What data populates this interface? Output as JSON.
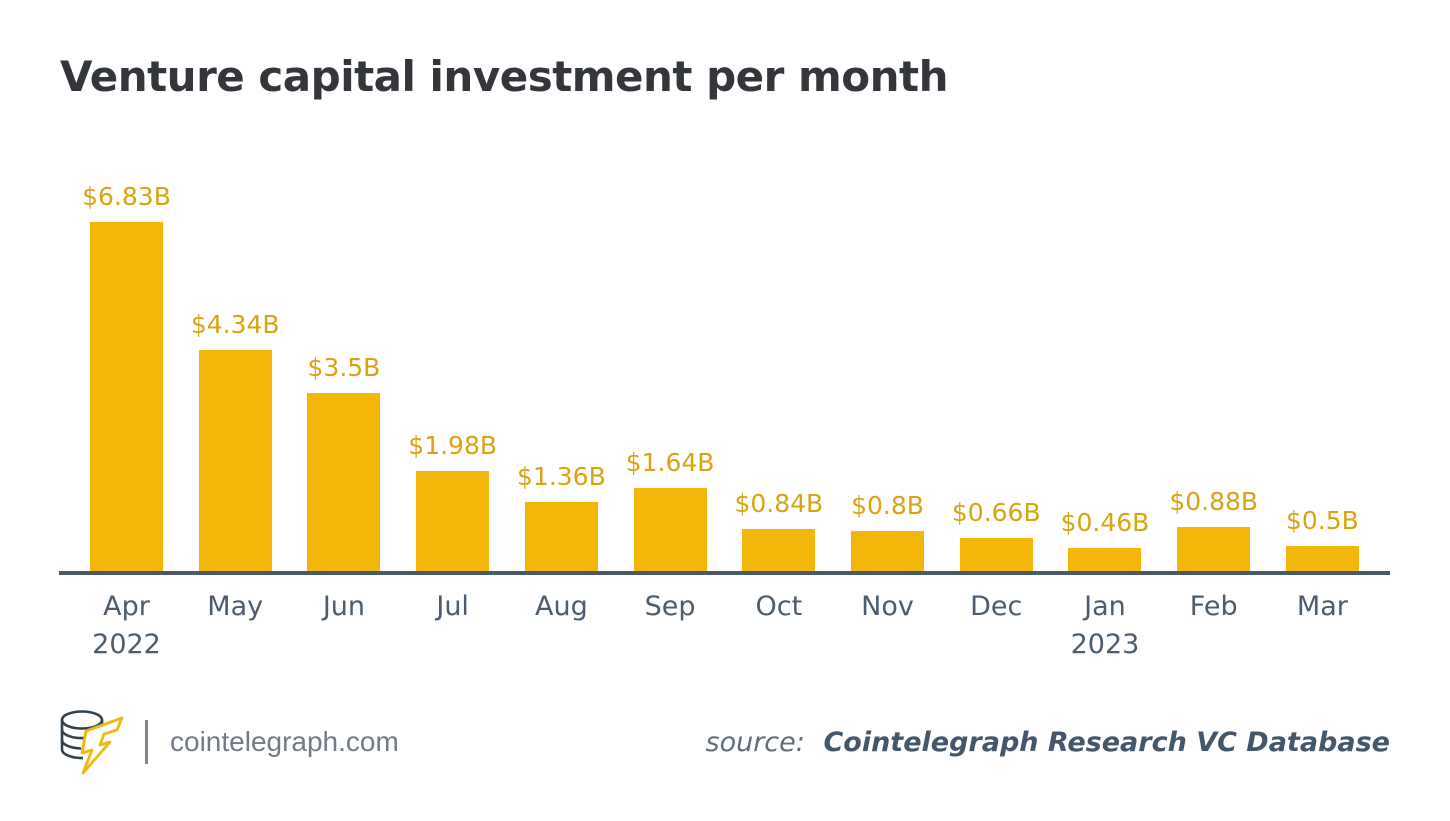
{
  "chart_data": {
    "type": "bar",
    "title": "Venture capital investment per month",
    "categories": [
      "Apr",
      "May",
      "Jun",
      "Jul",
      "Aug",
      "Sep",
      "Oct",
      "Nov",
      "Dec",
      "Jan",
      "Feb",
      "Mar"
    ],
    "category_sub_labels": [
      "2022",
      "",
      "",
      "",
      "",
      "",
      "",
      "",
      "",
      "2023",
      "",
      ""
    ],
    "values": [
      6.83,
      4.34,
      3.5,
      1.98,
      1.36,
      1.64,
      0.84,
      0.8,
      0.66,
      0.46,
      0.88,
      0.5
    ],
    "data_labels": [
      "$6.83B",
      "$4.34B",
      "$3.5B",
      "$1.98B",
      "$1.36B",
      "$1.64B",
      "$0.84B",
      "$0.8B",
      "$0.66B",
      "$0.46B",
      "$0.88B",
      "$0.5B"
    ],
    "unit": "billions USD",
    "ylim": [
      0,
      6.83
    ],
    "grid": false,
    "legend": "none",
    "bar_color": "#F3B70C",
    "data_label_color": "#D9A312",
    "axis_line_color": "#4A5A68",
    "tick_label_color": "#4A5C6D"
  },
  "header": {
    "title": "Venture capital investment per month"
  },
  "footer": {
    "logo_name": "cointelegraph-logo",
    "site": "cointelegraph.com",
    "source_prefix": "source:",
    "source_name": "Cointelegraph Research VC Database",
    "logo_accent_color": "#F0B90B",
    "logo_outline_color": "#32404C"
  }
}
